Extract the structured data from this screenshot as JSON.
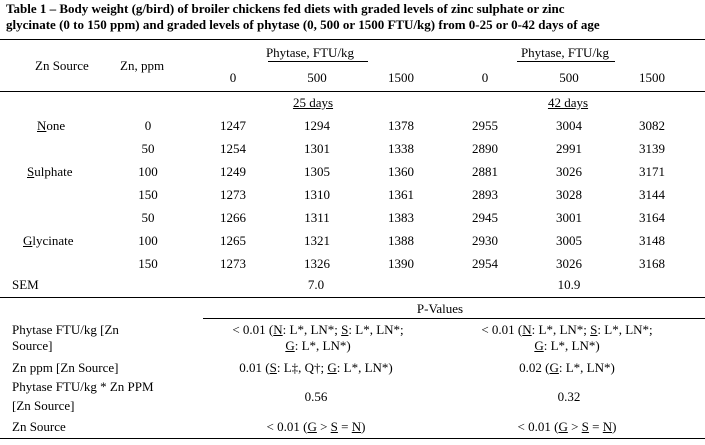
{
  "table": {
    "title_line1": "Table 1 – Body weight (g/bird) of broiler chickens fed diets with graded levels of zinc sulphate or zinc",
    "title_line2": "glycinate (0 to 150 ppm) and graded levels of phytase (0, 500 or 1500 FTU/kg) from 0-25 or 0-42 days of age",
    "col_zn_source": "Zn Source",
    "col_zn_ppm": "Zn, ppm",
    "phytase_header_left": "Phytase, FTU/kg",
    "phytase_header_right": "Phytase, FTU/kg",
    "phytase_levels": [
      "0",
      "500",
      "1500",
      "0",
      "500",
      "1500"
    ],
    "period_left": "25 days",
    "period_right": "42 days",
    "groups": {
      "none": "None",
      "none_first": "N",
      "none_rest": "one",
      "sulphate_first": "S",
      "sulphate_rest": "ulphate",
      "glycinate_first": "G",
      "glycinate_rest": "lycinate"
    },
    "rows": [
      {
        "ppm": "0",
        "v": [
          "1247",
          "1294",
          "1378",
          "2955",
          "3004",
          "3082"
        ]
      },
      {
        "ppm": "50",
        "v": [
          "1254",
          "1301",
          "1338",
          "2890",
          "2991",
          "3139"
        ]
      },
      {
        "ppm": "100",
        "v": [
          "1249",
          "1305",
          "1360",
          "2881",
          "3026",
          "3171"
        ]
      },
      {
        "ppm": "150",
        "v": [
          "1273",
          "1310",
          "1361",
          "2893",
          "3028",
          "3144"
        ]
      },
      {
        "ppm": "50",
        "v": [
          "1266",
          "1311",
          "1383",
          "2945",
          "3001",
          "3164"
        ]
      },
      {
        "ppm": "100",
        "v": [
          "1265",
          "1321",
          "1388",
          "2930",
          "3005",
          "3148"
        ]
      },
      {
        "ppm": "150",
        "v": [
          "1273",
          "1326",
          "1390",
          "2954",
          "3026",
          "3168"
        ]
      }
    ],
    "sem_label": "SEM",
    "sem_left": "7.0",
    "sem_right": "10.9",
    "pvalues_header": "P-Values",
    "p_rows": [
      {
        "label_l1": "Phytase FTU/kg [Zn",
        "label_l2": "Source]"
      },
      {
        "label_l1": "Zn ppm [Zn Source]"
      },
      {
        "label_l1": "Phytase FTU/kg * Zn PPM",
        "label_l2": "[Zn Source]",
        "left": "0.56",
        "right": "0.32"
      },
      {
        "label_l1": "Zn Source"
      }
    ],
    "p_phy_left_a": "< 0.01 (",
    "p_phy_left_b": ": L*, LN*; ",
    "p_phy_left_c": ": L*, LN*;",
    "p_phy_left_d": ": L*, LN*)",
    "p_phy_right_a": "< 0.01 (",
    "p_phy_right_b": ": L*, LN*; ",
    "p_phy_right_c": ": L*, LN*;",
    "p_phy_right_d": ": L*, LN*)",
    "p_zn_left_a": "0.01 (",
    "p_zn_left_b": ": L‡, Q†; ",
    "p_zn_left_c": ": L*, LN*)",
    "p_zn_right_a": "0.02 (",
    "p_zn_right_b": ": L*, LN*)",
    "p_src_left_a": "< 0.01 (",
    "p_src_left_b": " > ",
    "p_src_left_c": " = ",
    "p_src_left_d": ")",
    "p_src_right_a": "< 0.01 (",
    "p_src_right_b": " > ",
    "p_src_right_c": " = ",
    "p_src_right_d": ")",
    "letter_n": "N",
    "letter_s": "S",
    "letter_g": "G"
  }
}
